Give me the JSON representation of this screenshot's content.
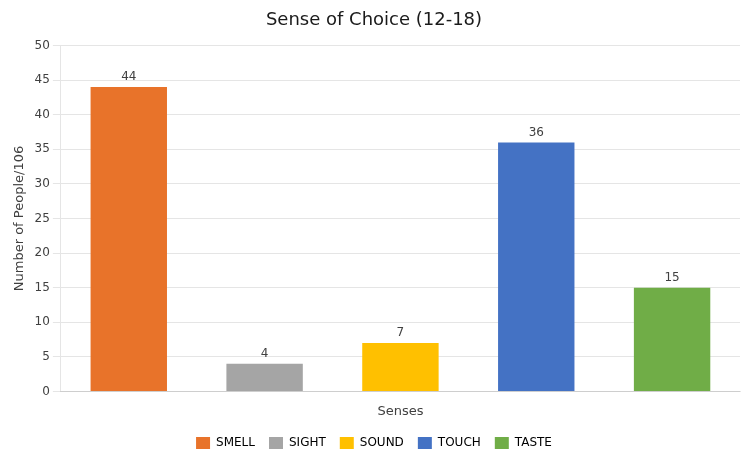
{
  "chart_data": {
    "type": "bar",
    "title": "Sense of Choice (12-18)",
    "xlabel": "Senses",
    "ylabel": "Number of People/106",
    "categories": [
      "SMELL",
      "SIGHT",
      "SOUND",
      "TOUCH",
      "TASTE"
    ],
    "values": [
      44,
      4,
      7,
      36,
      15
    ],
    "colors": [
      "#E8732A",
      "#A5A5A5",
      "#FFC000",
      "#4472C4",
      "#70AD47"
    ],
    "ylim": [
      0,
      50
    ],
    "yticks": [
      0,
      5,
      10,
      15,
      20,
      25,
      30,
      35,
      40,
      45,
      50
    ],
    "grid": true,
    "legend": "bottom",
    "data_labels": true,
    "tick_labels": "y"
  }
}
